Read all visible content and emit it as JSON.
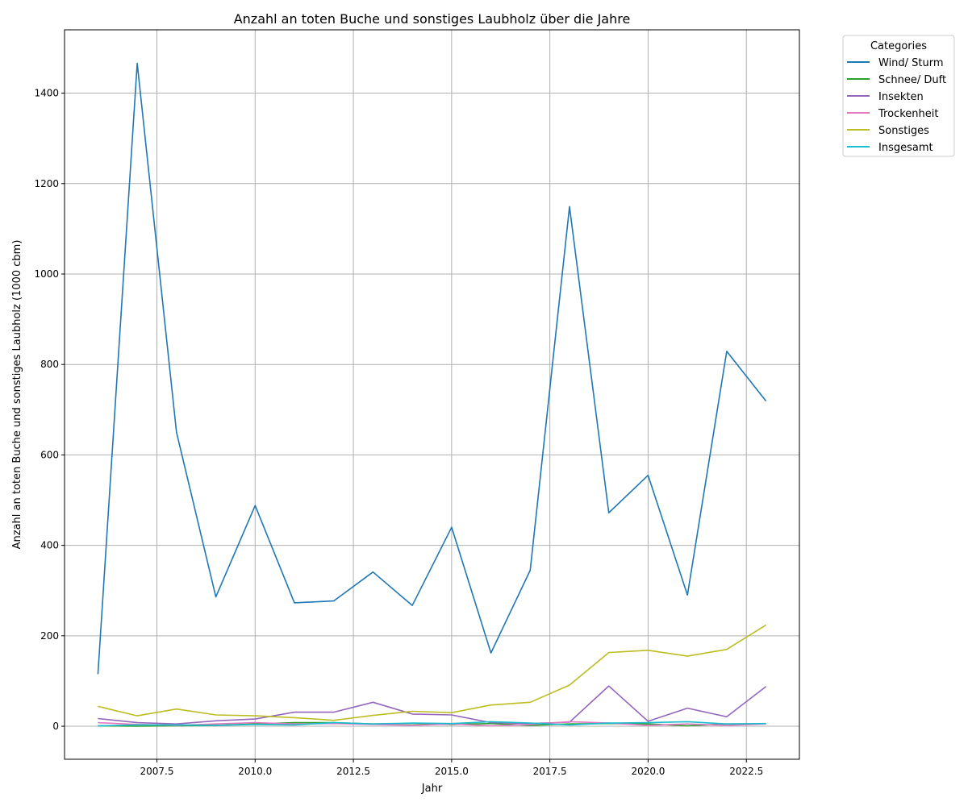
{
  "chart_data": {
    "type": "line",
    "title": "Anzahl an toten Buche und sonstiges Laubholz über die Jahre",
    "xlabel": "Jahr",
    "ylabel": "Anzahl an toten Buche und sonstiges Laubholz (1000 cbm)",
    "xlim": [
      2005.15,
      2023.85
    ],
    "ylim": [
      -73,
      1540
    ],
    "xticks": [
      2007.5,
      2010.0,
      2012.5,
      2015.0,
      2017.5,
      2020.0,
      2022.5
    ],
    "xtick_labels": [
      "2007.5",
      "2010.0",
      "2012.5",
      "2015.0",
      "2017.5",
      "2020.0",
      "2022.5"
    ],
    "yticks": [
      0,
      200,
      400,
      600,
      800,
      1000,
      1200,
      1400
    ],
    "ytick_labels": [
      "0",
      "200",
      "400",
      "600",
      "800",
      "1000",
      "1200",
      "1400"
    ],
    "grid": true,
    "legend_title": "Categories",
    "legend_position": "outside top-right",
    "x": [
      2006,
      2007,
      2008,
      2009,
      2010,
      2011,
      2012,
      2013,
      2014,
      2015,
      2016,
      2017,
      2018,
      2019,
      2020,
      2021,
      2022,
      2023
    ],
    "series": [
      {
        "name": "Wind/ Sturm",
        "color": "#1f77b4",
        "values": [
          115,
          1466,
          650,
          286,
          488,
          273,
          277,
          341,
          267,
          440,
          162,
          345,
          1149,
          472,
          555,
          290,
          829,
          719
        ]
      },
      {
        "name": "Schnee/ Duft",
        "color": "#2ca02c",
        "values": [
          1,
          0,
          1,
          2,
          5,
          8,
          8,
          5,
          6,
          4,
          6,
          2,
          5,
          6,
          5,
          1,
          5,
          5
        ]
      },
      {
        "name": "Insekten",
        "color": "#9467bd",
        "values": [
          17,
          8,
          5,
          12,
          16,
          31,
          31,
          53,
          27,
          25,
          8,
          6,
          9,
          89,
          11,
          40,
          21,
          88
        ]
      },
      {
        "name": "Trockenheit",
        "color": "#e377c2",
        "values": [
          8,
          4,
          2,
          5,
          8,
          5,
          6,
          4,
          2,
          5,
          1,
          4,
          10,
          7,
          2,
          5,
          2,
          5
        ]
      },
      {
        "name": "Sonstiges",
        "color": "#bcbd22",
        "values": [
          44,
          23,
          38,
          25,
          23,
          19,
          13,
          24,
          33,
          30,
          47,
          53,
          91,
          163,
          168,
          155,
          170,
          224
        ]
      },
      {
        "name": "Insgesamt",
        "color": "#17becf",
        "values": [
          1,
          3,
          3,
          2,
          4,
          3,
          8,
          5,
          7,
          6,
          10,
          7,
          3,
          7,
          8,
          10,
          5,
          6
        ]
      }
    ]
  }
}
